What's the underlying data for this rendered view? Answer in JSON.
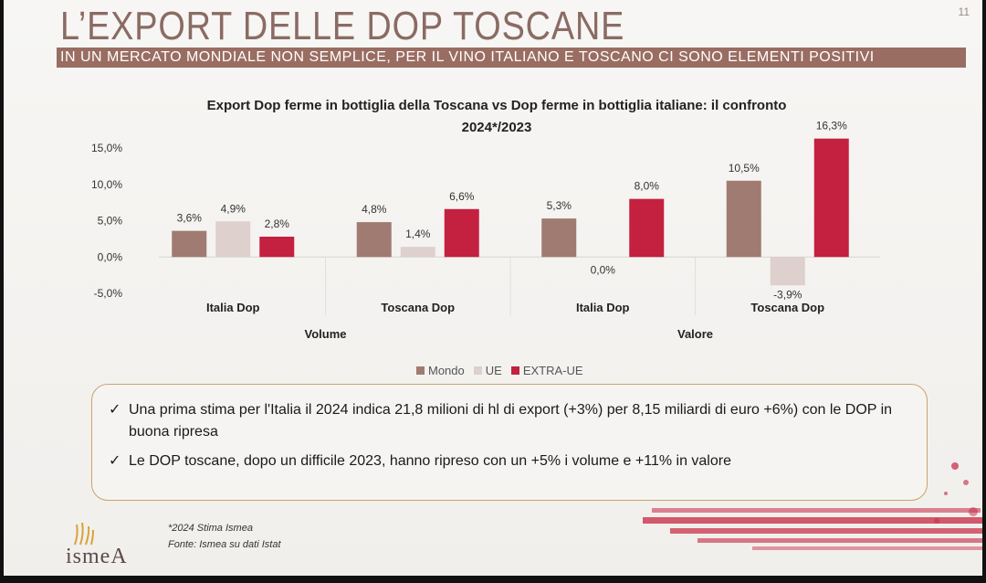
{
  "slide": {
    "title": "L’EXPORT DELLE DOP TOSCANE",
    "page_number": "11",
    "subtitle": "IN UN MERCATO MONDIALE NON SEMPLICE, PER IL VINO ITALIANO E TOSCANO CI SONO ELEMENTI POSITIVI"
  },
  "chart_data": {
    "type": "bar",
    "title_line1": "Export Dop ferme in bottiglia della Toscana vs Dop ferme in bottiglia italiane: il confronto",
    "title_line2": "2024*/2023",
    "categories": [
      "Italia Dop",
      "Toscana Dop",
      "Italia Dop",
      "Toscana Dop"
    ],
    "groups": [
      {
        "label": "Volume",
        "categories": [
          0,
          1
        ]
      },
      {
        "label": "Valore",
        "categories": [
          2,
          3
        ]
      }
    ],
    "series": [
      {
        "name": "Mondo",
        "color": "#a07b72",
        "values": [
          3.6,
          4.8,
          5.3,
          10.5
        ],
        "labels": [
          "3,6%",
          "4,8%",
          "5,3%",
          "10,5%"
        ]
      },
      {
        "name": "UE",
        "color": "#ddd0cd",
        "values": [
          4.9,
          1.4,
          0.0,
          -3.9
        ],
        "labels": [
          "4,9%",
          "1,4%",
          "0,0%",
          "-3,9%"
        ]
      },
      {
        "name": "EXTRA-UE",
        "color": "#c3213f",
        "values": [
          2.8,
          6.6,
          8.0,
          16.3
        ],
        "labels": [
          "2,8%",
          "6,6%",
          "8,0%",
          "16,3%"
        ]
      }
    ],
    "yticks": [
      "15,0%",
      "10,0%",
      "5,0%",
      "0,0%",
      "-5,0%"
    ],
    "ytick_values": [
      15,
      10,
      5,
      0,
      -5
    ],
    "ylim": [
      -5,
      15
    ],
    "legend_position": "bottom"
  },
  "notes": {
    "check_symbol": "✓",
    "items": [
      "Una prima stima per l'Italia il 2024 indica 21,8 milioni di hl di export (+3%) per 8,15 miliardi di euro +6%) con le DOP in buona ripresa",
      "Le DOP toscane, dopo un difficile 2023, hanno ripreso con un +5% i volume e +11% in valore"
    ]
  },
  "footer": {
    "footnote1": "*2024 Stima Ismea",
    "footnote2": "Fonte: Ismea su dati Istat",
    "logo": "ismeA"
  }
}
